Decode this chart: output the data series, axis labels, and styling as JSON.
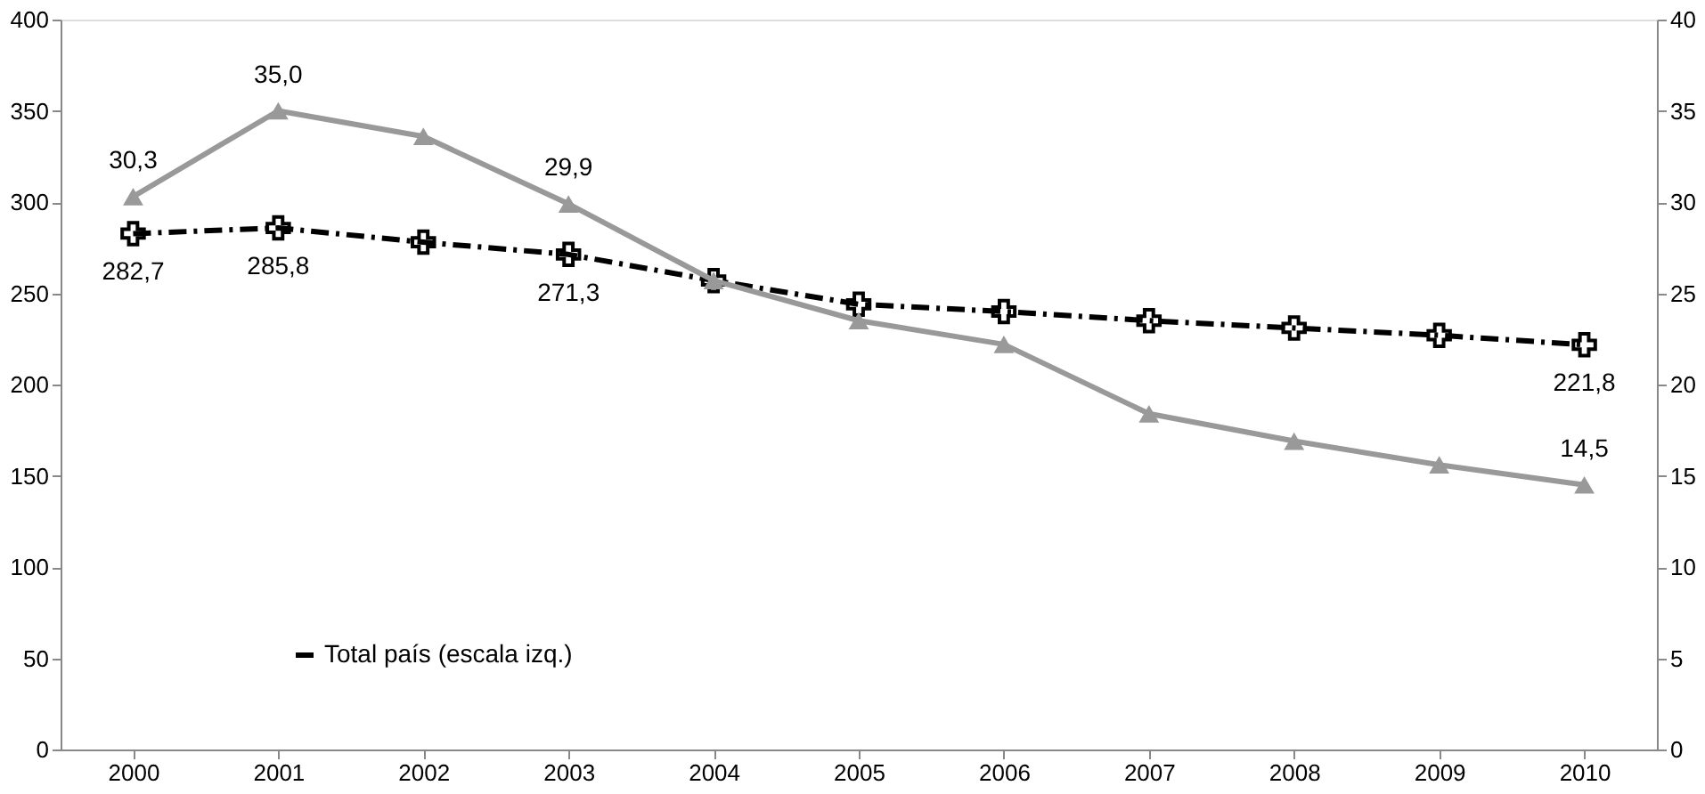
{
  "chart_data": {
    "type": "line",
    "categories": [
      "2000",
      "2001",
      "2002",
      "2003",
      "2004",
      "2005",
      "2006",
      "2007",
      "2008",
      "2009",
      "2010"
    ],
    "ylim": [
      0,
      400
    ],
    "yticks": [
      0,
      50,
      100,
      150,
      200,
      250,
      300,
      350,
      400
    ],
    "y2lim": [
      0,
      40
    ],
    "y2ticks": [
      0,
      5,
      10,
      15,
      20,
      25,
      30,
      35,
      40
    ],
    "legend": "bottom",
    "series": [
      {
        "name": "Total país (escala izq.)",
        "color": "#000000",
        "marker": "cross",
        "line_style": "dashdot",
        "values": [
          282.7,
          285.8,
          278,
          271.3,
          257,
          244,
          240,
          235,
          231,
          227,
          221.8
        ],
        "value_labels": [
          "282,7",
          "285,8",
          null,
          "271,3",
          null,
          null,
          null,
          null,
          null,
          null,
          "221,8"
        ]
      },
      {
        "color": "#999999",
        "axis": "y2",
        "marker": "triangle",
        "line_style": "solid",
        "values": [
          30.3,
          35.0,
          33.6,
          29.9,
          25.7,
          23.5,
          22.2,
          18.4,
          16.9,
          15.6,
          14.5
        ],
        "value_labels": [
          "30,3",
          "35,0",
          null,
          "29,9",
          null,
          null,
          null,
          null,
          null,
          null,
          "14,5"
        ]
      }
    ]
  }
}
